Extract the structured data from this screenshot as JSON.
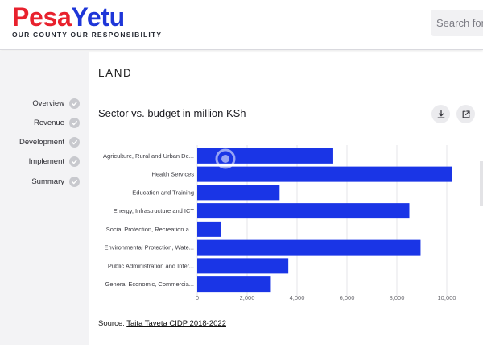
{
  "header": {
    "logo_pesa": "Pesa",
    "logo_yetu": "Yetu",
    "tagline": "OUR COUNTY OUR RESPONSIBILITY",
    "search_placeholder": "Search for a county"
  },
  "sidebar": {
    "items": [
      {
        "label": "Overview"
      },
      {
        "label": "Revenue"
      },
      {
        "label": "Development"
      },
      {
        "label": "Implement"
      },
      {
        "label": "Summary"
      }
    ]
  },
  "main": {
    "section_title": "LAND",
    "chart_title": "Sector vs. budget in million KSh",
    "source_prefix": "Source:",
    "source_link": "Taita Taveta CIDP 2018-2022"
  },
  "colors": {
    "bar": "#1a35e6",
    "logo_red": "#e8212d",
    "logo_blue": "#1e36d8"
  },
  "chart_data": {
    "type": "bar",
    "orientation": "horizontal",
    "title": "Sector vs. budget in million KSh",
    "categories": [
      "Agriculture, Rural and Urban De...",
      "Health Services",
      "Education and Training",
      "Energy, Infrastructure and ICT",
      "Social Protection, Recreation a...",
      "Environmental Protection, Wate...",
      "Public Administration and Inter...",
      "General Economic, Commercia..."
    ],
    "values": [
      5450,
      10200,
      3300,
      8500,
      950,
      8950,
      3650,
      2950
    ],
    "xlim": [
      0,
      10000
    ],
    "ticks": [
      0,
      2000,
      4000,
      6000,
      8000,
      10000
    ],
    "tick_labels": [
      "0",
      "2,000",
      "4,000",
      "6,000",
      "8,000",
      "10,000"
    ],
    "grid": true
  }
}
